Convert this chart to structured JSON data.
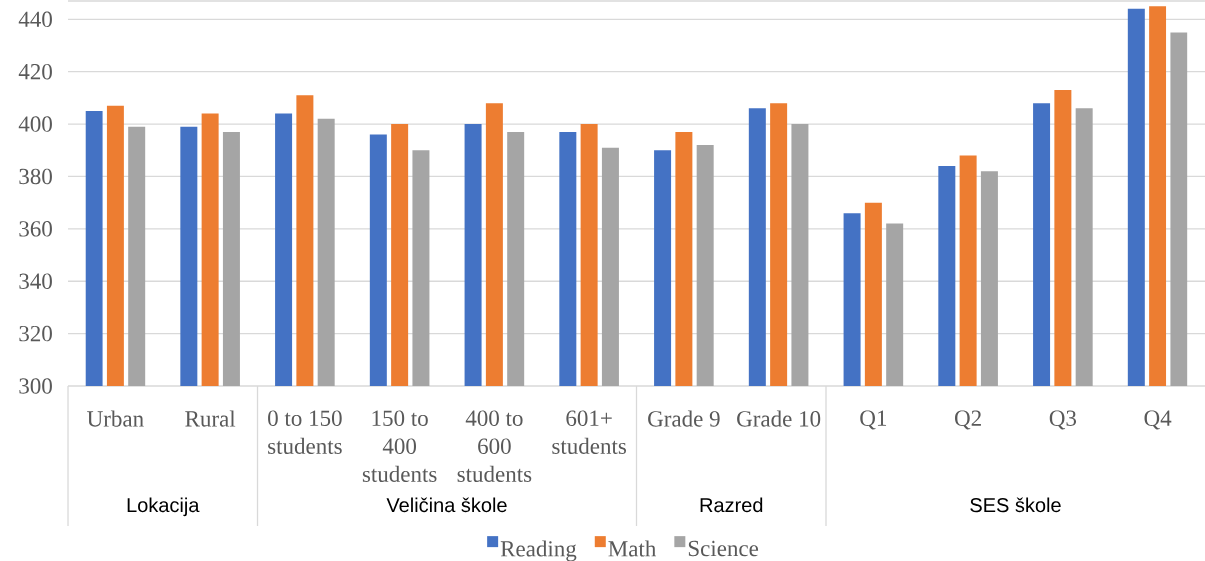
{
  "chart_data": {
    "type": "bar",
    "categories": [
      "Urban",
      "Rural",
      "0 to 150 students",
      "150 to 400 students",
      "400 to 600 students",
      "601+ students",
      "Grade 9",
      "Grade 10",
      "Q1",
      "Q2",
      "Q3",
      "Q4"
    ],
    "series": [
      {
        "name": "Reading",
        "color": "#4472c4",
        "values": [
          405,
          399,
          404,
          396,
          400,
          397,
          390,
          406,
          366,
          384,
          408,
          444
        ]
      },
      {
        "name": "Math",
        "color": "#ed7d31",
        "values": [
          407,
          404,
          411,
          400,
          408,
          400,
          397,
          408,
          370,
          388,
          413,
          445
        ]
      },
      {
        "name": "Science",
        "color": "#a5a5a5",
        "values": [
          399,
          397,
          402,
          390,
          397,
          391,
          392,
          400,
          362,
          382,
          406,
          435
        ]
      }
    ],
    "ylim": [
      300,
      447
    ],
    "yticks": [
      300,
      320,
      340,
      360,
      380,
      400,
      420,
      440
    ],
    "grid": "y",
    "legend": "bottom",
    "annotations": [
      "Lokacija",
      "Veličina škole",
      "Razred",
      "SES škole"
    ]
  }
}
